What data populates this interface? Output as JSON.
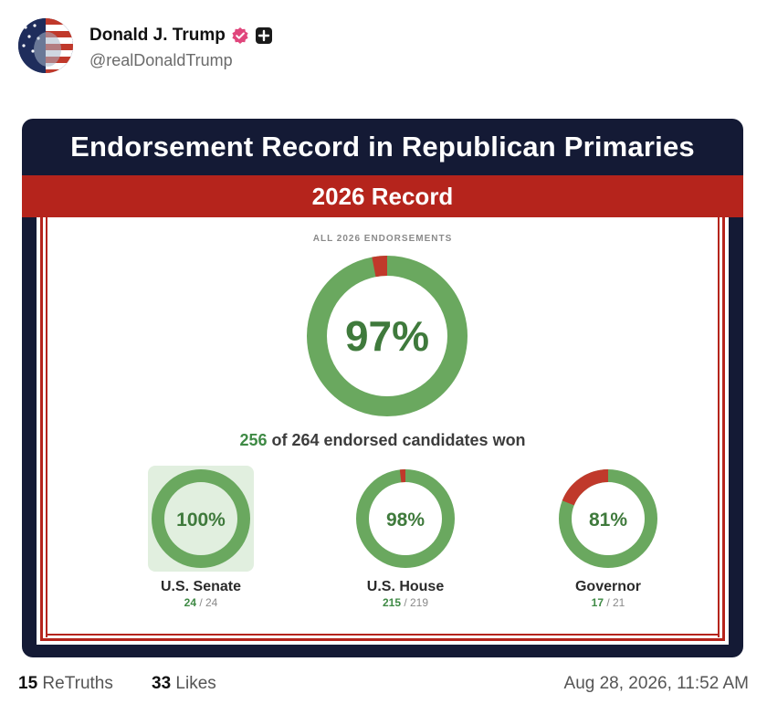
{
  "post": {
    "author_name": "Donald J. Trump",
    "handle": "@realDonaldTrump",
    "retruths_count": "15",
    "retruths_label": "ReTruths",
    "likes_count": "33",
    "likes_label": "Likes",
    "timestamp": "Aug 28, 2026, 11:52 AM"
  },
  "icons": {
    "avatar": "avatar-flag-portrait",
    "verified": "verified-badge-icon",
    "plus": "plus-square-icon"
  },
  "graphic": {
    "title": "Endorsement Record in Republican Primaries",
    "subtitle": "2026 Record",
    "caption": "ALL 2026 ENDORSEMENTS",
    "overall": {
      "percent_label": "97%",
      "won": 256,
      "total": 264,
      "won_label": "256",
      "summary_text": " of 264 endorsed candidates won"
    },
    "categories": [
      {
        "name": "U.S. Senate",
        "percent_label": "100%",
        "won": 24,
        "total": 24,
        "won_label": "24",
        "total_label": " / 24",
        "highlighted": true
      },
      {
        "name": "U.S. House",
        "percent_label": "98%",
        "won": 215,
        "total": 219,
        "won_label": "215",
        "total_label": " / 219",
        "highlighted": false
      },
      {
        "name": "Governor",
        "percent_label": "81%",
        "won": 17,
        "total": 21,
        "won_label": "17",
        "total_label": " / 21",
        "highlighted": false
      }
    ],
    "colors": {
      "win_green": "#6aa85f",
      "loss_red": "#c0392b",
      "percent_text": "#3f7a3c",
      "navy": "#141a35",
      "banner_red": "#b5241c"
    }
  },
  "chart_data": {
    "type": "pie",
    "title": "Endorsement Record in Republican Primaries",
    "subtitle": "2026 Record",
    "series": [
      {
        "name": "",
        "won": 256,
        "total": 264,
        "percent": 97
      },
      {
        "name": "U.S. Senate",
        "won": 24,
        "total": 24,
        "percent": 100
      },
      {
        "name": "U.S. House",
        "won": 215,
        "total": 219,
        "percent": 98
      },
      {
        "name": "Governor",
        "won": 17,
        "total": 21,
        "percent": 81
      }
    ]
  }
}
